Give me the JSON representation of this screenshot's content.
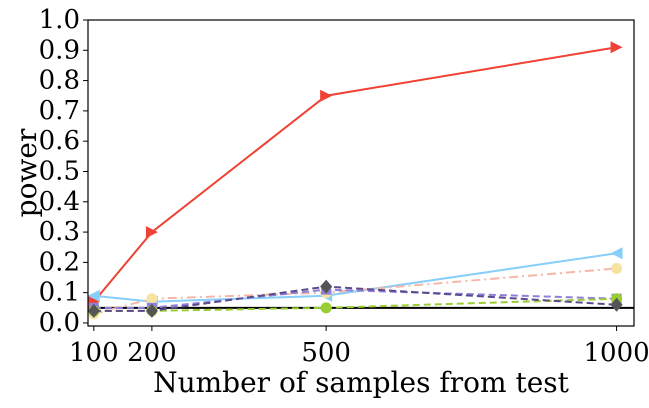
{
  "chart_data": {
    "type": "line",
    "title": "",
    "xlabel": "Number of samples from test",
    "ylabel": "power",
    "x": [
      100,
      200,
      500,
      1000
    ],
    "xticks": [
      100,
      200,
      500,
      1000
    ],
    "xtick_labels": [
      "100",
      "200",
      "500",
      "1000"
    ],
    "xlim": [
      90,
      1030
    ],
    "ylim": [
      -0.01,
      1.0
    ],
    "yticks": [
      0.0,
      0.1,
      0.2,
      0.3,
      0.4,
      0.5,
      0.6,
      0.7,
      0.8,
      0.9,
      1.0
    ],
    "ytick_labels": [
      "0.0",
      "0.1",
      "0.2",
      "0.3",
      "0.4",
      "0.5",
      "0.6",
      "0.7",
      "0.8",
      "0.9",
      "1.0"
    ],
    "grid": false,
    "legend": null,
    "reference_line": {
      "y": 0.05,
      "color": "#000000"
    },
    "series": [
      {
        "values": [
          0.07,
          0.3,
          0.75,
          0.91
        ],
        "color": "#ef4135",
        "marker": "triangle-right",
        "dash": "solid"
      },
      {
        "values": [
          0.09,
          0.07,
          0.09,
          0.23
        ],
        "color": "#87cefa",
        "marker": "triangle-left",
        "dash": "solid"
      },
      {
        "values": [
          0.03,
          0.08,
          0.1,
          0.18
        ],
        "color": "#f5b7a8",
        "marker": "circle",
        "dash": "dashdot",
        "marker_color": "#f7e3a1"
      },
      {
        "values": [
          0.05,
          0.05,
          0.11,
          0.08
        ],
        "color": "#8f7fd8",
        "marker": "square",
        "dash": "dashed"
      },
      {
        "values": [
          0.04,
          0.04,
          0.05,
          0.08
        ],
        "color": "#9acd32",
        "marker": "circle",
        "dash": "dashed"
      },
      {
        "values": [
          0.04,
          0.04,
          0.12,
          0.06
        ],
        "color": "#555555",
        "marker": "diamond",
        "dash": "dashed",
        "line_color": "#5b4a8c"
      }
    ]
  }
}
